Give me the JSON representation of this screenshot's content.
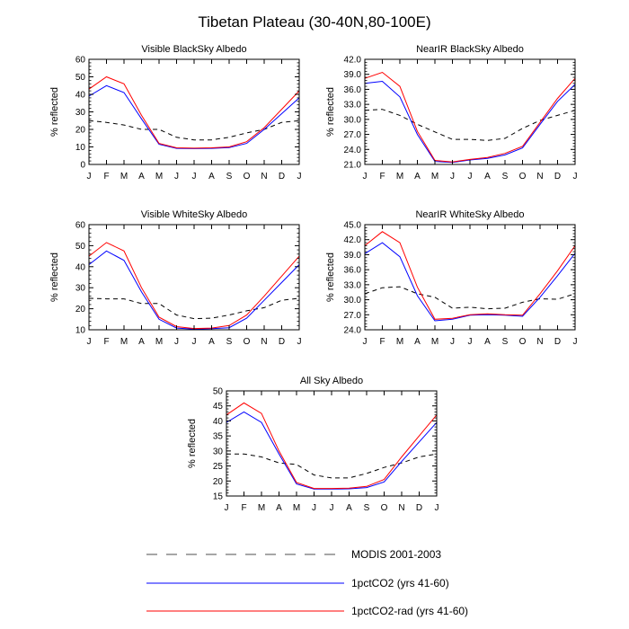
{
  "figure": {
    "title": "Tibetan Plateau (30-40N,80-100E)"
  },
  "months": [
    "J",
    "F",
    "M",
    "A",
    "M",
    "J",
    "J",
    "A",
    "S",
    "O",
    "N",
    "D",
    "J"
  ],
  "legend": {
    "placement": "bottom-center",
    "entries": [
      {
        "label": "MODIS 2001-2003",
        "color": "#000000",
        "dash": true
      },
      {
        "label": "1pctCO2 (yrs 41-60)",
        "color": "#0000ff",
        "dash": false
      },
      {
        "label": "1pctCO2-rad (yrs 41-60)",
        "color": "#ff0000",
        "dash": false
      }
    ]
  },
  "chart_data": [
    {
      "type": "line",
      "title": "Visible BlackSky Albedo",
      "ylabel": "% reflected",
      "ylim": [
        0,
        60
      ],
      "yticks": [
        0,
        10,
        20,
        30,
        40,
        50,
        60
      ],
      "ytick_labels": [
        "0",
        "10",
        "20",
        "30",
        "40",
        "50",
        "60"
      ],
      "x": [
        "J",
        "F",
        "M",
        "A",
        "M",
        "J",
        "J",
        "A",
        "S",
        "O",
        "N",
        "D",
        "J"
      ],
      "series": [
        {
          "name": "MODIS 2001-2003",
          "color": "#000000",
          "dash": true,
          "values": [
            25,
            24,
            22.5,
            20,
            20,
            15.5,
            14,
            14,
            15.5,
            18,
            20,
            24,
            25
          ]
        },
        {
          "name": "1pctCO2 (yrs 41-60)",
          "color": "#0000ff",
          "dash": false,
          "values": [
            39,
            45,
            41,
            26,
            11.5,
            9.2,
            9,
            9.2,
            9.6,
            12,
            20,
            29,
            38
          ]
        },
        {
          "name": "1pctCO2-rad (yrs 41-60)",
          "color": "#ff0000",
          "dash": false,
          "values": [
            43,
            50,
            46,
            28,
            12,
            9.5,
            9.3,
            9.5,
            10,
            13,
            21,
            31.5,
            42
          ]
        }
      ]
    },
    {
      "type": "line",
      "title": "NearIR BlackSky Albedo",
      "ylabel": "% reflected",
      "ylim": [
        21,
        42
      ],
      "yticks": [
        21,
        24,
        27,
        30,
        33,
        36,
        39,
        42
      ],
      "ytick_labels": [
        "21.0",
        "24.0",
        "27.0",
        "30.0",
        "33.0",
        "36.0",
        "39.0",
        "42.0"
      ],
      "x": [
        "J",
        "F",
        "M",
        "A",
        "M",
        "J",
        "J",
        "A",
        "S",
        "O",
        "N",
        "D",
        "J"
      ],
      "series": [
        {
          "name": "MODIS 2001-2003",
          "color": "#000000",
          "dash": true,
          "values": [
            31.8,
            32,
            30.8,
            29,
            27.5,
            26,
            26,
            25.8,
            26.2,
            28.2,
            29.8,
            30.8,
            31.8
          ]
        },
        {
          "name": "1pctCO2 (yrs 41-60)",
          "color": "#0000ff",
          "dash": false,
          "values": [
            37.2,
            37.6,
            34.5,
            27,
            21.6,
            21.4,
            21.9,
            22.2,
            22.9,
            24.3,
            29,
            33.6,
            37
          ]
        },
        {
          "name": "1pctCO2-rad (yrs 41-60)",
          "color": "#ff0000",
          "dash": false,
          "values": [
            38.2,
            39.4,
            36.6,
            27.6,
            21.8,
            21.5,
            22,
            22.4,
            23.2,
            24.6,
            29.4,
            34.2,
            38.2
          ]
        }
      ]
    },
    {
      "type": "line",
      "title": "Visible WhiteSky Albedo",
      "ylabel": "% reflected",
      "ylim": [
        10,
        60
      ],
      "yticks": [
        10,
        20,
        30,
        40,
        50,
        60
      ],
      "ytick_labels": [
        "10",
        "20",
        "30",
        "40",
        "50",
        "60"
      ],
      "x": [
        "J",
        "F",
        "M",
        "A",
        "M",
        "J",
        "J",
        "A",
        "S",
        "O",
        "N",
        "D",
        "J"
      ],
      "series": [
        {
          "name": "MODIS 2001-2003",
          "color": "#000000",
          "dash": true,
          "values": [
            25,
            24.7,
            24.7,
            22.5,
            22.5,
            17,
            15.3,
            15.5,
            17,
            19,
            20.5,
            24,
            25
          ]
        },
        {
          "name": "1pctCO2 (yrs 41-60)",
          "color": "#0000ff",
          "dash": false,
          "values": [
            41,
            47.5,
            43,
            28,
            15,
            10.8,
            10.3,
            10.5,
            11,
            15.5,
            24,
            32.5,
            41
          ]
        },
        {
          "name": "1pctCO2-rad (yrs 41-60)",
          "color": "#ff0000",
          "dash": false,
          "values": [
            45,
            51.5,
            47.5,
            30,
            16,
            11.5,
            10.6,
            10.8,
            12,
            17,
            26,
            35.5,
            45
          ]
        }
      ]
    },
    {
      "type": "line",
      "title": "NearIR WhiteSky Albedo",
      "ylabel": "% reflected",
      "ylim": [
        24,
        45
      ],
      "yticks": [
        24,
        27,
        30,
        33,
        36,
        39,
        42,
        45
      ],
      "ytick_labels": [
        "24.0",
        "27.0",
        "30.0",
        "33.0",
        "36.0",
        "39.0",
        "42.0",
        "45.0"
      ],
      "x": [
        "J",
        "F",
        "M",
        "A",
        "M",
        "J",
        "J",
        "A",
        "S",
        "O",
        "N",
        "D",
        "J"
      ],
      "series": [
        {
          "name": "MODIS 2001-2003",
          "color": "#000000",
          "dash": true,
          "values": [
            31.2,
            32.4,
            32.6,
            31.2,
            30.5,
            28.3,
            28.5,
            28.2,
            28.3,
            29.5,
            30.2,
            30.1,
            31.2
          ]
        },
        {
          "name": "1pctCO2 (yrs 41-60)",
          "color": "#0000ff",
          "dash": false,
          "values": [
            39.2,
            41.4,
            38.6,
            30.8,
            25.8,
            26.1,
            26.9,
            27,
            26.9,
            26.7,
            30.5,
            34.8,
            39.3
          ]
        },
        {
          "name": "1pctCO2-rad (yrs 41-60)",
          "color": "#ff0000",
          "dash": false,
          "values": [
            40.8,
            43.6,
            41.4,
            32.5,
            26.1,
            26.3,
            27,
            27.2,
            27,
            26.9,
            31.2,
            35.8,
            40.8
          ]
        }
      ]
    },
    {
      "type": "line",
      "title": "All Sky Albedo",
      "ylabel": "% reflected",
      "ylim": [
        15,
        50
      ],
      "yticks": [
        15,
        20,
        25,
        30,
        35,
        40,
        45,
        50
      ],
      "ytick_labels": [
        "15",
        "20",
        "25",
        "30",
        "35",
        "40",
        "45",
        "50"
      ],
      "x": [
        "J",
        "F",
        "M",
        "A",
        "M",
        "J",
        "J",
        "A",
        "S",
        "O",
        "N",
        "D",
        "J"
      ],
      "series": [
        {
          "name": "MODIS 2001-2003",
          "color": "#000000",
          "dash": true,
          "values": [
            29,
            29,
            28,
            26,
            25.5,
            22,
            21,
            21,
            22.5,
            24.5,
            26,
            28,
            29
          ]
        },
        {
          "name": "1pctCO2 (yrs 41-60)",
          "color": "#0000ff",
          "dash": false,
          "values": [
            39.5,
            43,
            39.5,
            29,
            19,
            17.3,
            17.3,
            17.4,
            17.8,
            19.7,
            26.5,
            33,
            39.5
          ]
        },
        {
          "name": "1pctCO2-rad (yrs 41-60)",
          "color": "#ff0000",
          "dash": false,
          "values": [
            42,
            46,
            42.5,
            30,
            19.5,
            17.5,
            17.5,
            17.6,
            18.2,
            20.5,
            28,
            35,
            42
          ]
        }
      ]
    }
  ]
}
